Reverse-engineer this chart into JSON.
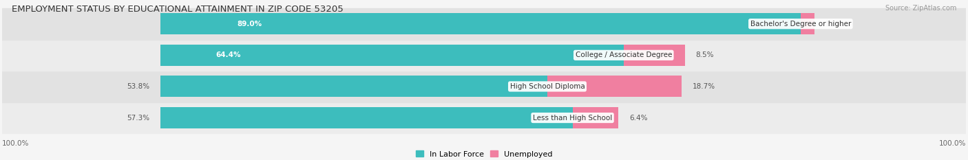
{
  "title": "EMPLOYMENT STATUS BY EDUCATIONAL ATTAINMENT IN ZIP CODE 53205",
  "source": "Source: ZipAtlas.com",
  "categories": [
    "Less than High School",
    "High School Diploma",
    "College / Associate Degree",
    "Bachelor's Degree or higher"
  ],
  "labor_force_pct": [
    57.3,
    53.8,
    64.4,
    89.0
  ],
  "unemployed_pct": [
    6.4,
    18.7,
    8.5,
    1.9
  ],
  "labor_force_color": "#3dbdbd",
  "unemployed_color": "#f07fa0",
  "row_bg_colors": [
    "#ececec",
    "#e2e2e2",
    "#ececec",
    "#e2e2e2"
  ],
  "label_outside_color": "#555555",
  "label_inside_color": "#ffffff",
  "axis_label": "100.0%",
  "title_fontsize": 9.5,
  "bar_label_fontsize": 7.5,
  "cat_label_fontsize": 7.5,
  "legend_fontsize": 8.0,
  "source_fontsize": 7.0,
  "total_scale": 100.0,
  "bar_height": 0.68,
  "x_min": 0,
  "x_max": 100
}
